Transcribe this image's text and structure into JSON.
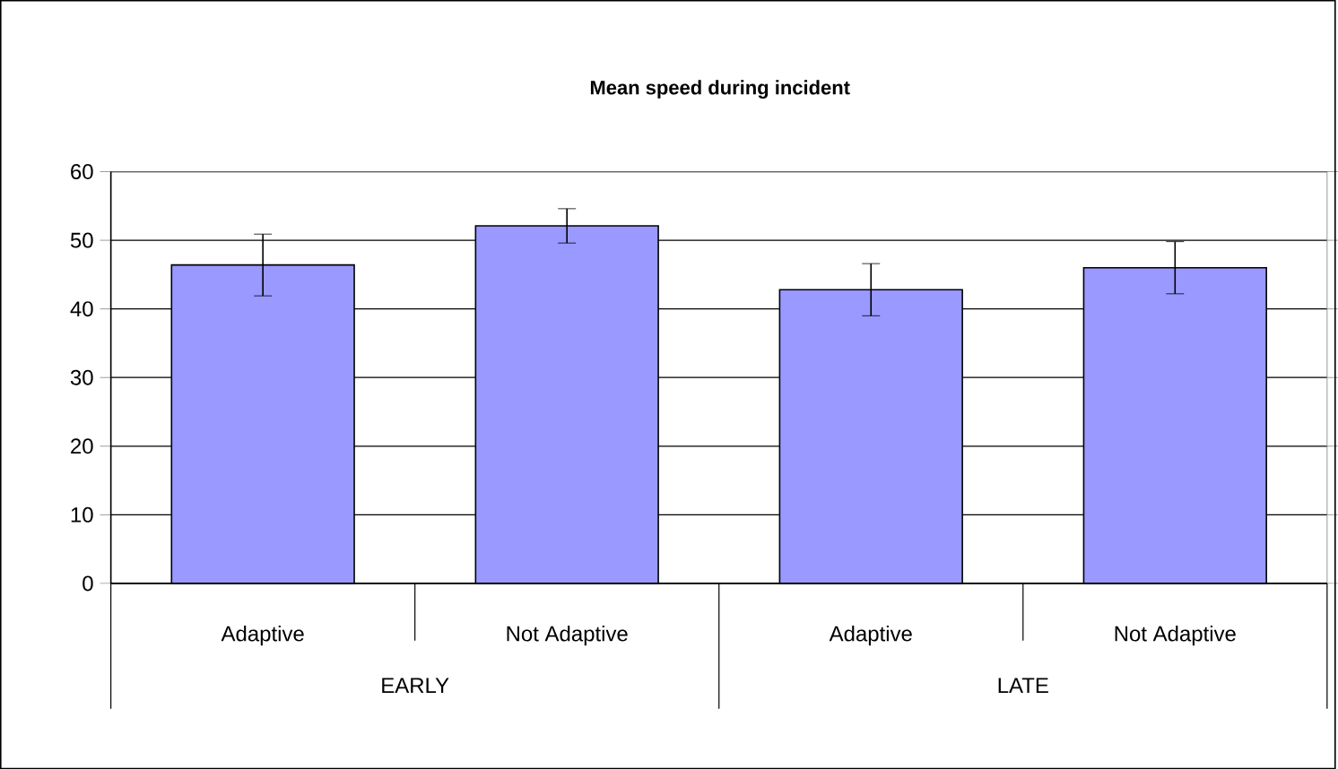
{
  "chart_data": {
    "type": "bar",
    "title": "Mean speed during incident",
    "categories": [
      "Adaptive",
      "Not Adaptive",
      "Adaptive",
      "Not Adaptive"
    ],
    "values": [
      46.4,
      52.1,
      42.8,
      46.0
    ],
    "errors": [
      4.5,
      2.5,
      3.8,
      3.8
    ],
    "color": "#9999ff",
    "ylim": [
      0,
      60
    ],
    "yticks": [
      0,
      10,
      20,
      30,
      40,
      50,
      60
    ],
    "grid": "y",
    "annotations": [
      "EARLY",
      "LATE"
    ]
  }
}
